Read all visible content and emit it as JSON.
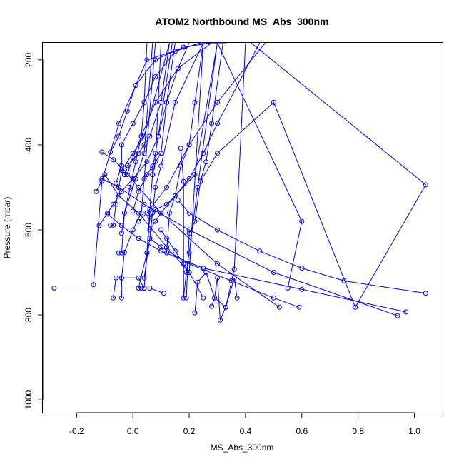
{
  "chart_data": {
    "type": "line",
    "title": "ATOM2 Northbound MS_Abs_300nm",
    "xlabel": "MS_Abs_300nm",
    "ylabel": "Pressure (mbar)",
    "xlim": [
      -0.32,
      1.1
    ],
    "ylim": [
      1030,
      160
    ],
    "y_reversed": true,
    "x_ticks": [
      -0.2,
      0.0,
      0.2,
      0.4,
      0.6,
      0.8,
      1.0
    ],
    "x_tick_labels": [
      "-0.2",
      "0.0",
      "0.2",
      "0.4",
      "0.6",
      "0.8",
      "1.0"
    ],
    "y_ticks": [
      200,
      400,
      600,
      800,
      1000
    ],
    "y_tick_labels": [
      "200",
      "400",
      "600",
      "800",
      "1000"
    ],
    "grid": false,
    "legend": "none",
    "series_color": "#0000ff",
    "series": [
      {
        "x": [
          -0.28,
          0.55,
          0.6,
          0.3
        ],
        "y": [
          737,
          737,
          580,
          160
        ]
      },
      {
        "x": [
          -0.14,
          -0.11,
          -0.05,
          0.05,
          0.24,
          0.33
        ],
        "y": [
          729,
          485,
          350,
          200,
          160,
          160
        ]
      },
      {
        "x": [
          -0.13,
          -0.1,
          -0.05,
          0.02,
          0.12,
          0.2,
          0.25
        ],
        "y": [
          510,
          470,
          520,
          560,
          640,
          700,
          760
        ]
      },
      {
        "x": [
          -0.12,
          -0.09,
          -0.07,
          -0.04,
          0.0,
          0.05,
          0.09,
          0.14
        ],
        "y": [
          590,
          560,
          540,
          510,
          480,
          440,
          380,
          160
        ]
      },
      {
        "x": [
          -0.11,
          -0.07,
          -0.03,
          0.02,
          0.1,
          0.3,
          0.52
        ],
        "y": [
          417,
          435,
          460,
          500,
          560,
          680,
          782
        ]
      },
      {
        "x": [
          -0.11,
          -0.05,
          0.04,
          0.2,
          0.5,
          0.94
        ],
        "y": [
          480,
          500,
          540,
          600,
          700,
          802
        ]
      },
      {
        "x": [
          -0.09,
          -0.04,
          0.02,
          0.1,
          0.25,
          0.6,
          0.97
        ],
        "y": [
          563,
          590,
          620,
          650,
          690,
          740,
          793
        ]
      },
      {
        "x": [
          -0.08,
          -0.05,
          -0.02,
          0.01,
          0.08,
          0.18,
          0.28
        ],
        "y": [
          417,
          380,
          320,
          260,
          200,
          170,
          160
        ]
      },
      {
        "x": [
          -0.07,
          -0.06,
          -0.04,
          0.02,
          0.04,
          0.06,
          0.11
        ],
        "y": [
          760,
          713,
          713,
          713,
          737,
          737,
          749
        ]
      },
      {
        "x": [
          -0.08,
          -0.07,
          -0.06,
          -0.05,
          -0.04,
          0.0,
          0.04,
          0.13
        ],
        "y": [
          589,
          589,
          540,
          500,
          460,
          420,
          380,
          160
        ]
      },
      {
        "x": [
          -0.06,
          -0.04,
          -0.04,
          0.0,
          0.04,
          0.08,
          0.15,
          0.24
        ],
        "y": [
          490,
          449,
          400,
          350,
          300,
          240,
          180,
          160
        ]
      },
      {
        "x": [
          -0.05,
          -0.04,
          -0.03,
          0.01,
          0.04,
          0.07
        ],
        "y": [
          654,
          654,
          560,
          480,
          420,
          160
        ]
      },
      {
        "x": [
          -0.04,
          -0.04,
          -0.03,
          0.0,
          0.03,
          0.04,
          0.08
        ],
        "y": [
          760,
          713,
          653,
          600,
          560,
          480,
          160
        ]
      },
      {
        "x": [
          -0.04,
          -0.03,
          -0.01,
          0.01,
          0.03,
          0.04,
          0.05
        ],
        "y": [
          608,
          560,
          500,
          440,
          380,
          300,
          160
        ]
      },
      {
        "x": [
          -0.03,
          -0.02,
          0.02,
          0.04,
          0.06,
          0.1,
          0.13
        ],
        "y": [
          470,
          449,
          420,
          400,
          380,
          300,
          160
        ]
      },
      {
        "x": [
          0.0,
          0.02,
          0.05,
          0.07,
          0.1,
          0.12,
          0.15
        ],
        "y": [
          556,
          510,
          470,
          450,
          420,
          300,
          160
        ]
      },
      {
        "x": [
          0.02,
          0.05,
          0.06,
          0.08,
          0.12,
          0.15,
          0.22,
          0.3
        ],
        "y": [
          737,
          654,
          570,
          552,
          540,
          520,
          470,
          160
        ]
      },
      {
        "x": [
          0.03,
          0.04,
          0.05,
          0.06,
          0.07,
          0.08,
          0.1
        ],
        "y": [
          737,
          737,
          654,
          552,
          470,
          440,
          160
        ]
      },
      {
        "x": [
          0.04,
          0.06,
          0.07,
          0.08,
          0.1,
          0.15,
          0.25
        ],
        "y": [
          713,
          620,
          560,
          500,
          450,
          300,
          160
        ]
      },
      {
        "x": [
          0.06,
          0.08,
          0.1,
          0.15,
          0.2,
          0.25,
          0.3,
          0.45
        ],
        "y": [
          600,
          580,
          560,
          520,
          480,
          420,
          350,
          160
        ]
      },
      {
        "x": [
          0.07,
          0.07,
          0.08,
          0.09,
          0.12,
          0.16,
          0.2
        ],
        "y": [
          470,
          454,
          420,
          380,
          300,
          220,
          160
        ]
      },
      {
        "x": [
          0.1,
          0.12,
          0.15,
          0.18,
          0.2,
          0.25
        ],
        "y": [
          600,
          620,
          650,
          680,
          700,
          160
        ]
      },
      {
        "x": [
          0.12,
          0.13,
          0.15,
          0.17,
          0.2,
          0.22,
          0.25
        ],
        "y": [
          654,
          560,
          520,
          450,
          400,
          300,
          160
        ]
      },
      {
        "x": [
          0.17,
          0.18,
          0.18,
          0.19,
          0.2,
          0.23,
          0.3
        ],
        "y": [
          408,
          486,
          760,
          700,
          654,
          500,
          160
        ]
      },
      {
        "x": [
          0.19,
          0.2,
          0.22,
          0.24,
          0.26,
          0.28,
          0.32
        ],
        "y": [
          760,
          608,
          580,
          486,
          440,
          350,
          160
        ]
      },
      {
        "x": [
          0.22,
          0.23,
          0.26,
          0.29,
          0.33,
          0.36,
          0.37
        ],
        "y": [
          795,
          723,
          700,
          760,
          782,
          713,
          760
        ]
      },
      {
        "x": [
          0.28,
          0.29,
          0.3,
          0.31,
          0.33,
          0.36,
          0.4
        ],
        "y": [
          780,
          760,
          713,
          812,
          782,
          693,
          160
        ]
      },
      {
        "x": [
          0.16,
          0.2,
          0.3,
          0.45,
          0.6,
          0.75,
          1.04
        ],
        "y": [
          530,
          560,
          600,
          650,
          690,
          720,
          749
        ]
      },
      {
        "x": [
          0.24,
          0.3,
          0.5,
          0.79,
          1.04,
          0.42
        ],
        "y": [
          486,
          420,
          300,
          782,
          494,
          160
        ]
      },
      {
        "x": [
          0.06,
          0.1,
          0.2,
          0.35,
          0.5,
          0.59
        ],
        "y": [
          620,
          640,
          680,
          720,
          760,
          782
        ]
      },
      {
        "x": [
          0.02,
          0.05,
          0.12,
          0.2,
          0.3,
          0.47
        ],
        "y": [
          580,
          560,
          500,
          400,
          300,
          160
        ]
      },
      {
        "x": [
          -0.02,
          0.0,
          0.03,
          0.08,
          0.16,
          0.28
        ],
        "y": [
          470,
          430,
          380,
          300,
          220,
          160
        ]
      }
    ]
  }
}
